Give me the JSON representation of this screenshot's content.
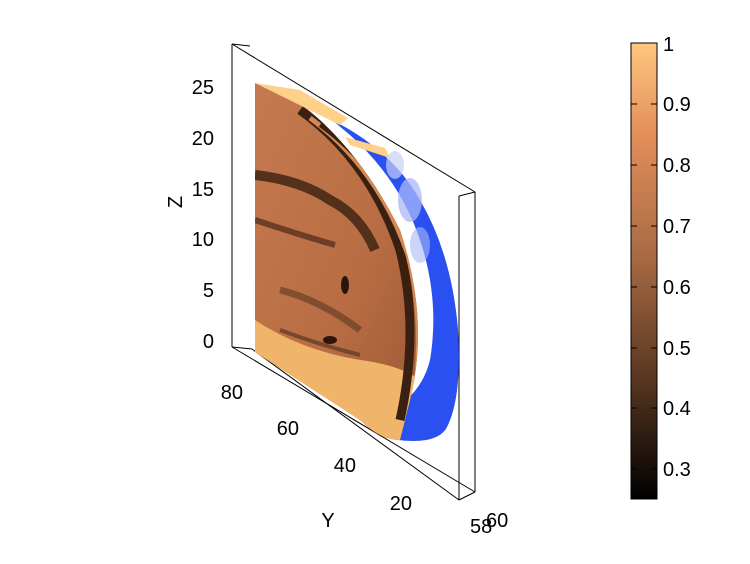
{
  "chart_data": {
    "type": "volume-slice",
    "title": "",
    "axes": {
      "z": {
        "label": "Z",
        "ticks": [
          "0",
          "5",
          "10",
          "15",
          "20",
          "25"
        ],
        "range": [
          -1,
          28
        ]
      },
      "y": {
        "label": "Y",
        "ticks": [
          "20",
          "40",
          "60",
          "80"
        ]
      },
      "x": {
        "ticks": [
          "58",
          "60"
        ],
        "note": "overlapping tick labels at the box corner"
      }
    },
    "colorbar": {
      "ticks": [
        "0.3",
        "0.4",
        "0.5",
        "0.6",
        "0.7",
        "0.8",
        "0.9",
        "1"
      ],
      "range": [
        0.25,
        1.0
      ],
      "colormap": "copper",
      "colors": [
        "#000000",
        "#5a3822",
        "#a86a43",
        "#e38e5a",
        "#ffc77f"
      ]
    },
    "isosurface_color": "#2b50f2",
    "grid": false,
    "legend": "none"
  }
}
